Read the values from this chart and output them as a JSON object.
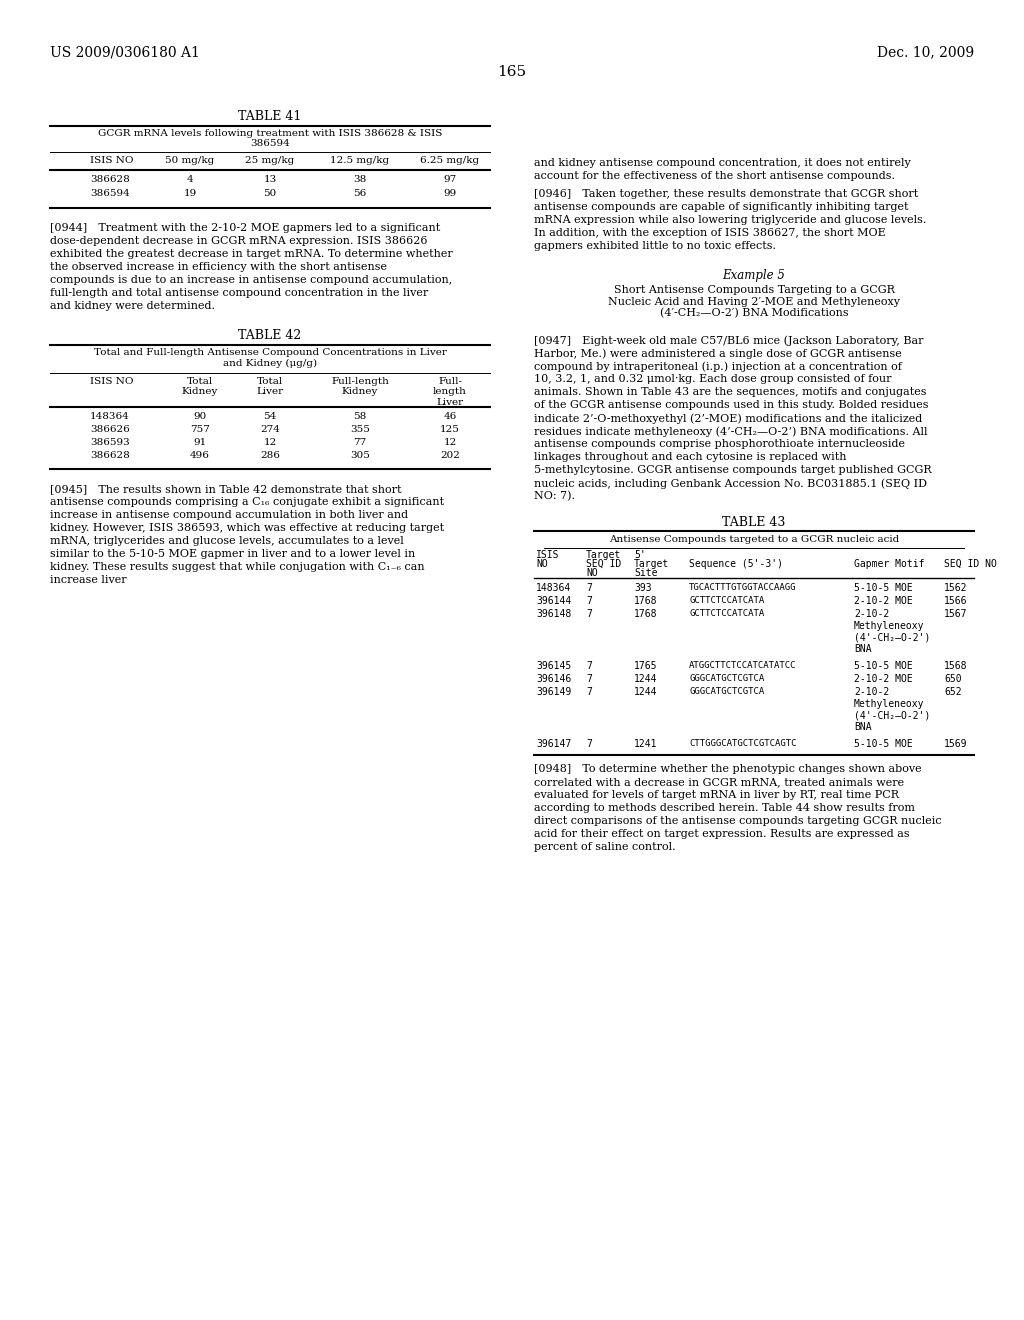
{
  "page_header_left": "US 2009/0306180 A1",
  "page_header_right": "Dec. 10, 2009",
  "page_number": "165",
  "background_color": "#ffffff",
  "table41_title": "TABLE 41",
  "table41_subtitle": "GCGR mRNA levels following treatment with ISIS 386628 & ISIS\n386594",
  "table41_headers": [
    "ISIS NO",
    "50 mg/kg",
    "25 mg/kg",
    "12.5 mg/kg",
    "6.25 mg/kg"
  ],
  "table41_data": [
    [
      "386628",
      "4",
      "13",
      "38",
      "97"
    ],
    [
      "386594",
      "19",
      "50",
      "56",
      "99"
    ]
  ],
  "table42_title": "TABLE 42",
  "table42_subtitle": "Total and Full-length Antisense Compound Concentrations in Liver\nand Kidney (μg/g)",
  "table42_headers": [
    "ISIS NO",
    "Total\nKidney",
    "Total\nLiver",
    "Full-length\nKidney",
    "Full-\nlength\nLiver"
  ],
  "table42_data": [
    [
      "148364",
      "90",
      "54",
      "58",
      "46"
    ],
    [
      "386626",
      "757",
      "274",
      "355",
      "125"
    ],
    [
      "386593",
      "91",
      "12",
      "77",
      "12"
    ],
    [
      "386628",
      "496",
      "286",
      "305",
      "202"
    ]
  ],
  "para0944": "[0944] Treatment with the 2-10-2 MOE gapmers led to a significant dose-dependent decrease in GCGR mRNA expression. ISIS 386626 exhibited the greatest decrease in target mRNA. To determine whether the observed increase in efficiency with the short antisense compounds is due to an increase in antisense compound accumulation, full-length and total antisense compound concentration in the liver and kidney were determined.",
  "right_para1": "and kidney antisense compound concentration, it does not entirely account for the effectiveness of the short antisense compounds.",
  "para0946_title": "[0946] Taken together, these results demonstrate that GCGR short antisense compounds are capable of significantly inhibiting target mRNA expression while also lowering triglyceride and glucose levels. In addition, with the exception of ISIS 386627, the short MOE gapmers exhibited little to no toxic effects.",
  "example5_title": "Example 5",
  "example5_subtitle": "Short Antisense Compounds Targeting to a GCGR\nNucleic Acid and Having 2′-MOE and Methyleneoxy\n(4′-CH₂—O-2′) BNA Modifications",
  "para0947": "[0947] Eight-week old male C57/BL6 mice (Jackson Laboratory, Bar Harbor, Me.) were administered a single dose of GCGR antisense compound by intraperitoneal (i.p.) injection at a concentration of 10, 3.2, 1, and 0.32 μmol·kg. Each dose group consisted of four animals. Shown in Table 43 are the sequences, motifs and conjugates of the GCGR antisense compounds used in this study. Bolded residues indicate 2’-O-methoxyethyl (2’-MOE) modifications and the italicized residues indicate methyleneoxy (4’-CH₂—O-2’) BNA modifications. All antisense compounds comprise phosphorothioate internucleoside linkages throughout and each cytosine is replaced with 5-methylcytosine. GCGR antisense compounds target published GCGR nucleic acids, including Genbank Accession No. BC031885.1 (SEQ ID NO: 7).",
  "table43_title": "TABLE 43",
  "table43_underline_text": "Antisense Compounds targeted to a GCGR nucleic acid",
  "table43_col_headers_line1": [
    "ISIS",
    "Target\nSEQ ID",
    "5'\nTarget",
    "",
    "",
    ""
  ],
  "table43_col_headers_line2": [
    "NO",
    "NO",
    "Site",
    "Sequence (5'-3')",
    "Gapmer Motif",
    "SEQ ID NO"
  ],
  "table43_data": [
    [
      "148364",
      "7",
      "393",
      "TGCACTTTGTGGTACCAAGG",
      "5-10-5 MOE",
      "1562"
    ],
    [
      "396144",
      "7",
      "1768",
      "GCTTCTCCATCATA",
      "2-10-2 MOE",
      "1566"
    ],
    [
      "396148",
      "7",
      "1768",
      "GCTTCTCCATCATA",
      "2-10-2\nMethyleneoxy\n(4'-CH₂—O-2')\nBNA",
      "1567"
    ],
    [
      "396145",
      "7",
      "1765",
      "ATGGCTTCTCCATCATATCC",
      "5-10-5 MOE",
      "1568"
    ],
    [
      "396146",
      "7",
      "1244",
      "GGGCATGCTCGTCA",
      "2-10-2 MOE",
      "650"
    ],
    [
      "396149",
      "7",
      "1244",
      "GGGCATGCTCGTCA",
      "2-10-2\nMethyleneoxy\n(4'-CH₂—O-2')\nBNA",
      "652"
    ],
    [
      "396147",
      "7",
      "1241",
      "CTTGGGCATGCTCGTCAGTC",
      "5-10-5 MOE",
      "1569"
    ]
  ],
  "para0945": "[0945] The results shown in Table 42 demonstrate that short antisense compounds comprising a C₁₆ conjugate exhibit a significant increase in antisense compound accumulation in both liver and kidney. However, ISIS 386593, which was effective at reducing target mRNA, triglycerides and glucose levels, accumulates to a level similar to the 5-10-5 MOE gapmer in liver and to a lower level in kidney. These results suggest that while conjugation with C₁₋₆ can increase liver",
  "para0948": "[0948] To determine whether the phenotypic changes shown above correlated with a decrease in GCGR mRNA, treated animals were evaluated for levels of target mRNA in liver by RT, real time PCR according to methods described herein. Table 44 show results from direct comparisons of the antisense compounds targeting GCGR nucleic acid for their effect on target expression. Results are expressed as percent of saline control."
}
